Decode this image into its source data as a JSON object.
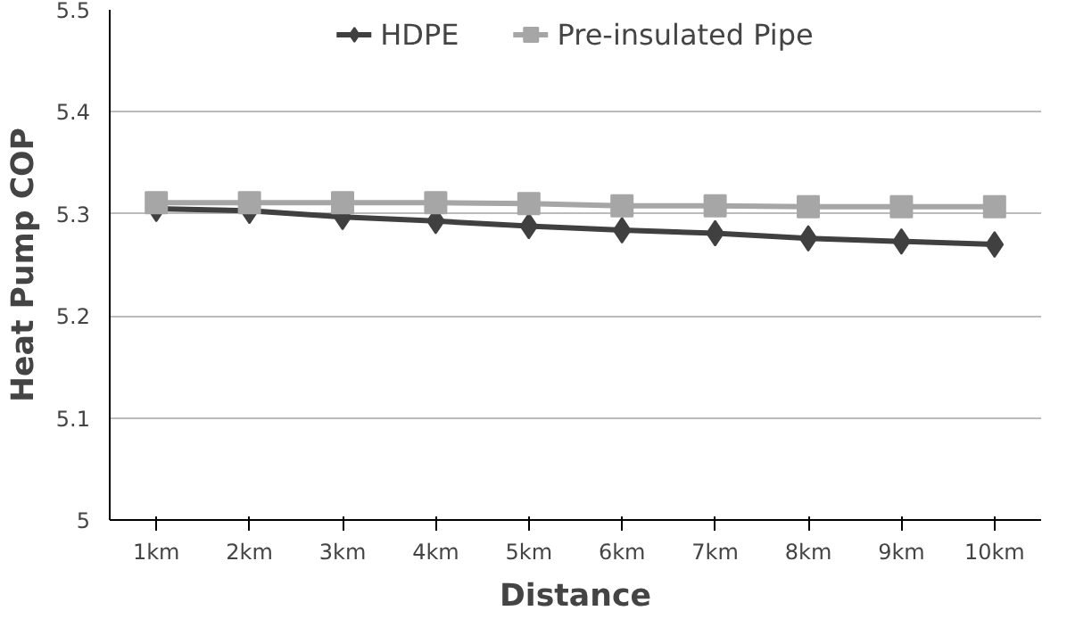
{
  "chart_data": {
    "type": "line",
    "xlabel": "Distance",
    "ylabel": "Heat Pump COP",
    "categories": [
      "1km",
      "2km",
      "3km",
      "4km",
      "5km",
      "6km",
      "7km",
      "8km",
      "9km",
      "10km"
    ],
    "series": [
      {
        "name": "HDPE",
        "color": "#404040",
        "marker": "diamond",
        "values": [
          5.305,
          5.303,
          5.297,
          5.293,
          5.288,
          5.284,
          5.281,
          5.276,
          5.273,
          5.27
        ]
      },
      {
        "name": "Pre-insulated Pipe",
        "color": "#a6a6a6",
        "marker": "square",
        "values": [
          5.311,
          5.311,
          5.311,
          5.311,
          5.31,
          5.308,
          5.308,
          5.307,
          5.307,
          5.307
        ]
      }
    ],
    "ylim": [
      5,
      5.5
    ],
    "yticks": [
      5,
      5.1,
      5.2,
      5.3,
      5.4,
      5.5
    ],
    "grid": "y",
    "legend": "top",
    "line_style": "solid"
  }
}
